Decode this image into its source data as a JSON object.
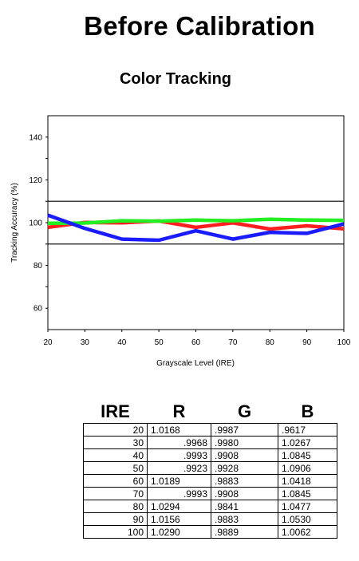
{
  "page": {
    "title": "Before Calibration"
  },
  "chart_data": {
    "type": "line",
    "title": "Color Tracking",
    "xlabel": "Grayscale Level (IRE)",
    "ylabel": "Tracking Accuracy (%)",
    "xlim": [
      20,
      100
    ],
    "ylim": [
      50,
      150
    ],
    "x": [
      20,
      30,
      40,
      50,
      60,
      70,
      80,
      90,
      100
    ],
    "x_ticks": [
      20,
      30,
      40,
      50,
      60,
      70,
      80,
      90,
      100
    ],
    "y_ticks": [
      60,
      80,
      100,
      120,
      140
    ],
    "reference_lines": [
      110,
      90
    ],
    "grid": false,
    "legend": "none",
    "series": [
      {
        "color": "#ff1f1f",
        "values": [
          97.8,
          100.1,
          99.9,
          100.8,
          97.8,
          99.9,
          97.0,
          98.5,
          97.1
        ]
      },
      {
        "color": "#22ee22",
        "values": [
          99.7,
          99.8,
          100.9,
          100.7,
          101.2,
          100.9,
          101.6,
          101.2,
          101.1
        ]
      },
      {
        "color": "#1b1bff",
        "values": [
          103.5,
          97.3,
          92.3,
          91.8,
          96.2,
          92.3,
          95.5,
          95.0,
          99.4
        ]
      }
    ]
  },
  "table": {
    "headers": [
      "IRE",
      "R",
      "G",
      "B"
    ],
    "rows": [
      [
        "20",
        "1.0168",
        ".9987",
        ".9617"
      ],
      [
        "30",
        ".9968",
        ".9980",
        "1.0267"
      ],
      [
        "40",
        ".9993",
        ".9908",
        "1.0845"
      ],
      [
        "50",
        ".9923",
        ".9928",
        "1.0906"
      ],
      [
        "60",
        "1.0189",
        ".9883",
        "1.0418"
      ],
      [
        "70",
        ".9993",
        ".9908",
        "1.0845"
      ],
      [
        "80",
        "1.0294",
        ".9841",
        "1.0477"
      ],
      [
        "90",
        "1.0156",
        ".9883",
        "1.0530"
      ],
      [
        "100",
        "1.0290",
        ".9889",
        "1.0062"
      ]
    ]
  }
}
